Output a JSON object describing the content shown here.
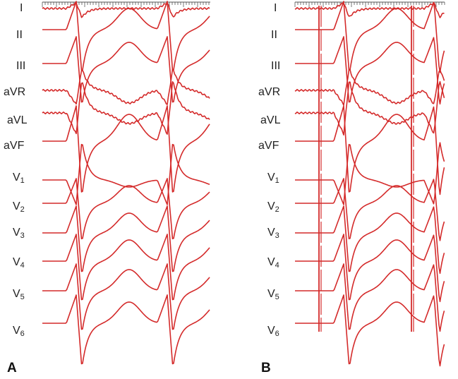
{
  "colors": {
    "trace": "#d42a2a",
    "ruler": "#555555",
    "label": "#222222"
  },
  "panels": [
    {
      "id": "A",
      "label": "A",
      "leads": [
        {
          "name": "I"
        },
        {
          "name": "II"
        },
        {
          "name": "III"
        },
        {
          "name": "aVR"
        },
        {
          "name": "aVL"
        },
        {
          "name": "aVF"
        },
        {
          "base": "V",
          "sub": "1"
        },
        {
          "base": "V",
          "sub": "2"
        },
        {
          "base": "V",
          "sub": "3"
        },
        {
          "base": "V",
          "sub": "4"
        },
        {
          "base": "V",
          "sub": "5"
        },
        {
          "base": "V",
          "sub": "6"
        }
      ]
    },
    {
      "id": "B",
      "label": "B",
      "leads": [
        {
          "name": "I"
        },
        {
          "name": "II"
        },
        {
          "name": "III"
        },
        {
          "name": "aVR"
        },
        {
          "name": "aVL"
        },
        {
          "name": "aVF"
        },
        {
          "base": "V",
          "sub": "1"
        },
        {
          "base": "V",
          "sub": "2"
        },
        {
          "base": "V",
          "sub": "3"
        },
        {
          "base": "V",
          "sub": "4"
        },
        {
          "base": "V",
          "sub": "5"
        },
        {
          "base": "V",
          "sub": "6"
        }
      ]
    }
  ]
}
